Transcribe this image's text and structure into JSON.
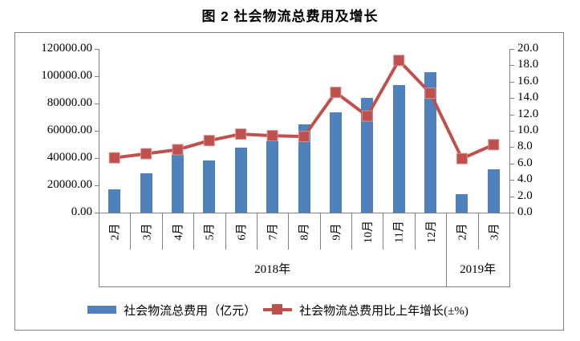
{
  "title": "图 2 社会物流总费用及增长",
  "colors": {
    "bar": "#4f81bd",
    "line": "#c0504d",
    "axis": "#808080"
  },
  "legend": {
    "bar_label": "社会物流总费用（亿元）",
    "line_label": "社会物流总费用比上年增长(±%)"
  },
  "chart_data": {
    "type": "bar",
    "subtype": "bar-line-combo",
    "title": "图 2 社会物流总费用及增长",
    "grid": false,
    "legend_position": "bottom",
    "categories": [
      "2月",
      "3月",
      "4月",
      "5月",
      "6月",
      "7月",
      "8月",
      "9月",
      "10月",
      "11月",
      "12月",
      "2月",
      "3月"
    ],
    "year_groups": [
      {
        "label": "2018年",
        "span": 11
      },
      {
        "label": "2019年",
        "span": 2
      }
    ],
    "series": [
      {
        "name": "社会物流总费用（亿元）",
        "type": "bar",
        "axis": "left",
        "values": [
          17000,
          29000,
          42500,
          38000,
          47500,
          52500,
          64500,
          73500,
          84000,
          93500,
          103000,
          13800,
          31900
        ]
      },
      {
        "name": "社会物流总费用比上年增长(±%)",
        "type": "line",
        "axis": "right",
        "values": [
          6.7,
          7.2,
          7.7,
          8.8,
          9.6,
          9.4,
          9.3,
          14.7,
          11.8,
          18.6,
          14.6,
          6.6,
          8.3
        ]
      }
    ],
    "left_axis": {
      "min": 0,
      "max": 120000,
      "step": 20000,
      "tick_labels": [
        "0.00",
        "20000.00",
        "40000.00",
        "60000.00",
        "80000.00",
        "100000.00",
        "120000.00"
      ]
    },
    "right_axis": {
      "min": 0,
      "max": 20,
      "step": 2,
      "tick_labels": [
        "0.0",
        "2.0",
        "4.0",
        "6.0",
        "8.0",
        "10.0",
        "12.0",
        "14.0",
        "16.0",
        "18.0",
        "20.0"
      ]
    }
  }
}
